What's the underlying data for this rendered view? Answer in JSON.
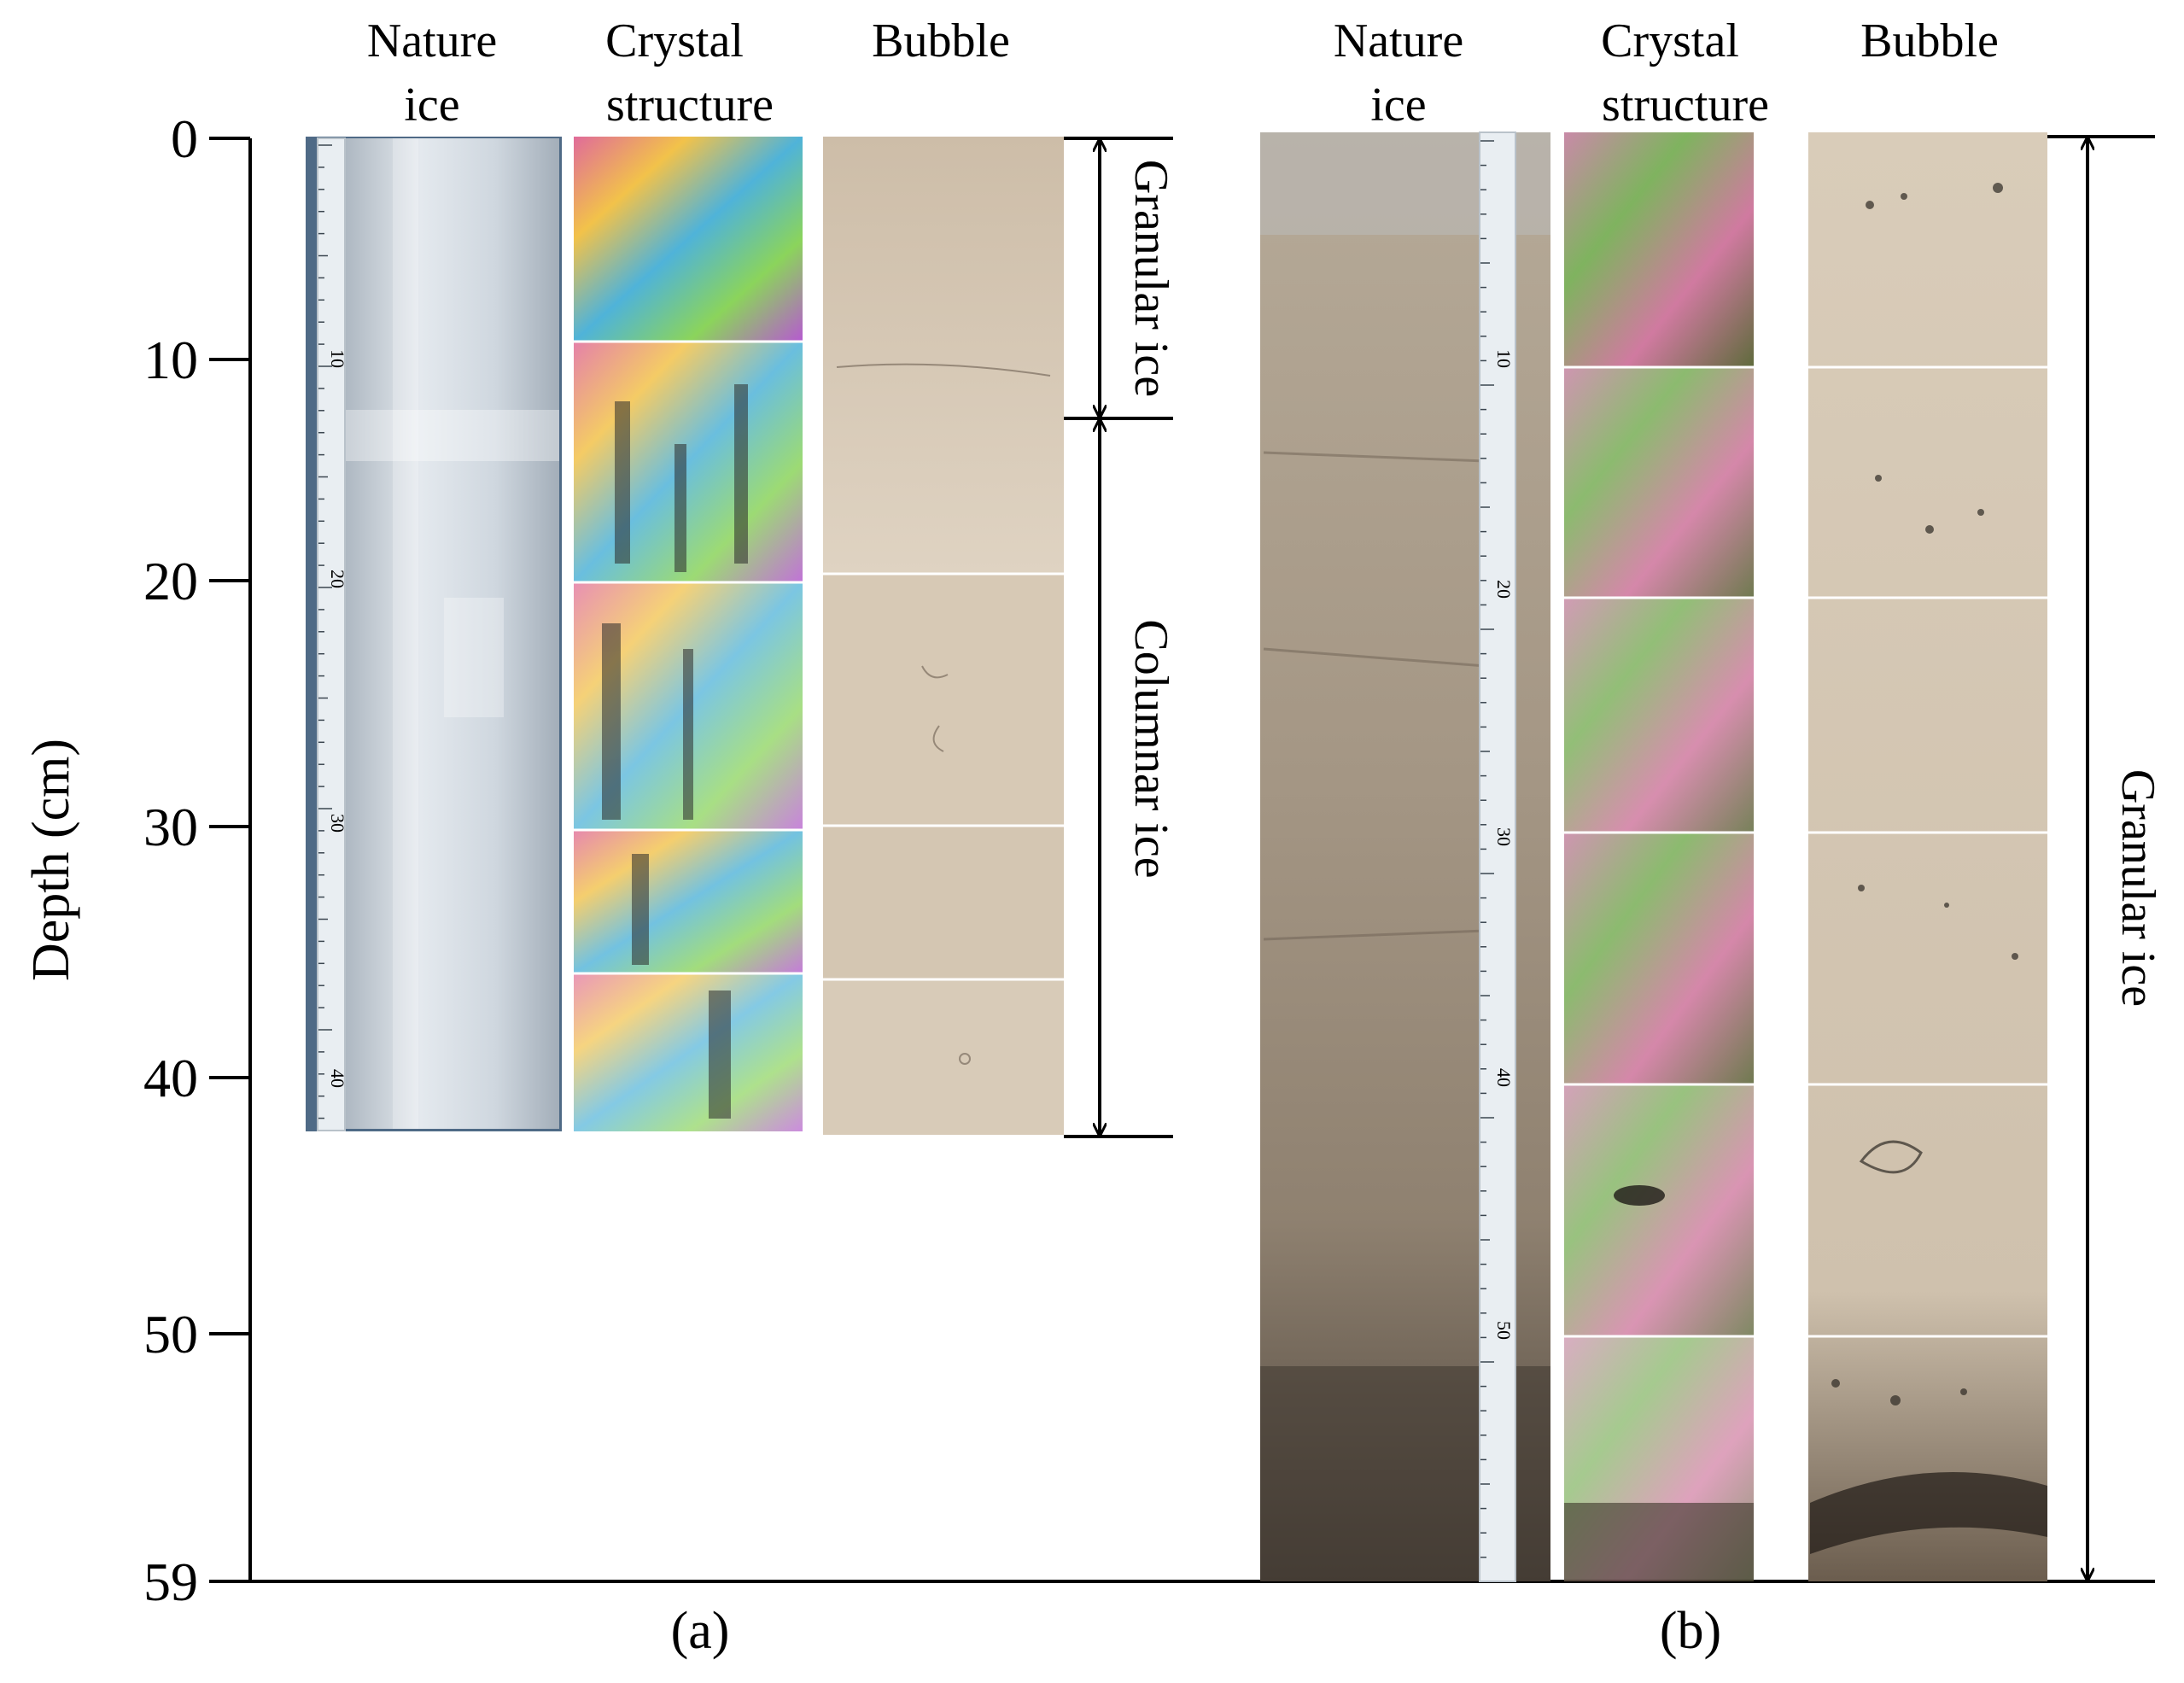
{
  "axis": {
    "label": "Depth (cm)",
    "ticks": [
      "0",
      "10",
      "20",
      "30",
      "40",
      "50",
      "59"
    ]
  },
  "panels": [
    {
      "caption": "(a)",
      "headers": [
        {
          "line1": "Nature",
          "line2": "ice"
        },
        {
          "line1": "Crystal",
          "line2": "structure"
        },
        {
          "line1": "Bubble",
          "line2": ""
        }
      ],
      "ice_types": [
        {
          "label": "Granular ice",
          "from_cm": 0,
          "to_cm": 13
        },
        {
          "label": "Columnar ice",
          "from_cm": 13,
          "to_cm": 46
        }
      ],
      "ruler_numbers": [
        "10",
        "20",
        "30",
        "40"
      ]
    },
    {
      "caption": "(b)",
      "headers": [
        {
          "line1": "Nature",
          "line2": "ice"
        },
        {
          "line1": "Crystal",
          "line2": "structure"
        },
        {
          "line1": "Bubble",
          "line2": ""
        }
      ],
      "ice_types": [
        {
          "label": "Granular ice",
          "from_cm": 0,
          "to_cm": 59
        }
      ],
      "ruler_numbers": [
        "10",
        "20",
        "30",
        "40",
        "50"
      ]
    }
  ],
  "colors": {
    "clear_ice": "#c9d2da",
    "sediment_ice": "#a89b8a",
    "bubble_bg": "#d8cbb8",
    "ruler": "#e9eef2",
    "ruler_mark": "#c4164a"
  }
}
